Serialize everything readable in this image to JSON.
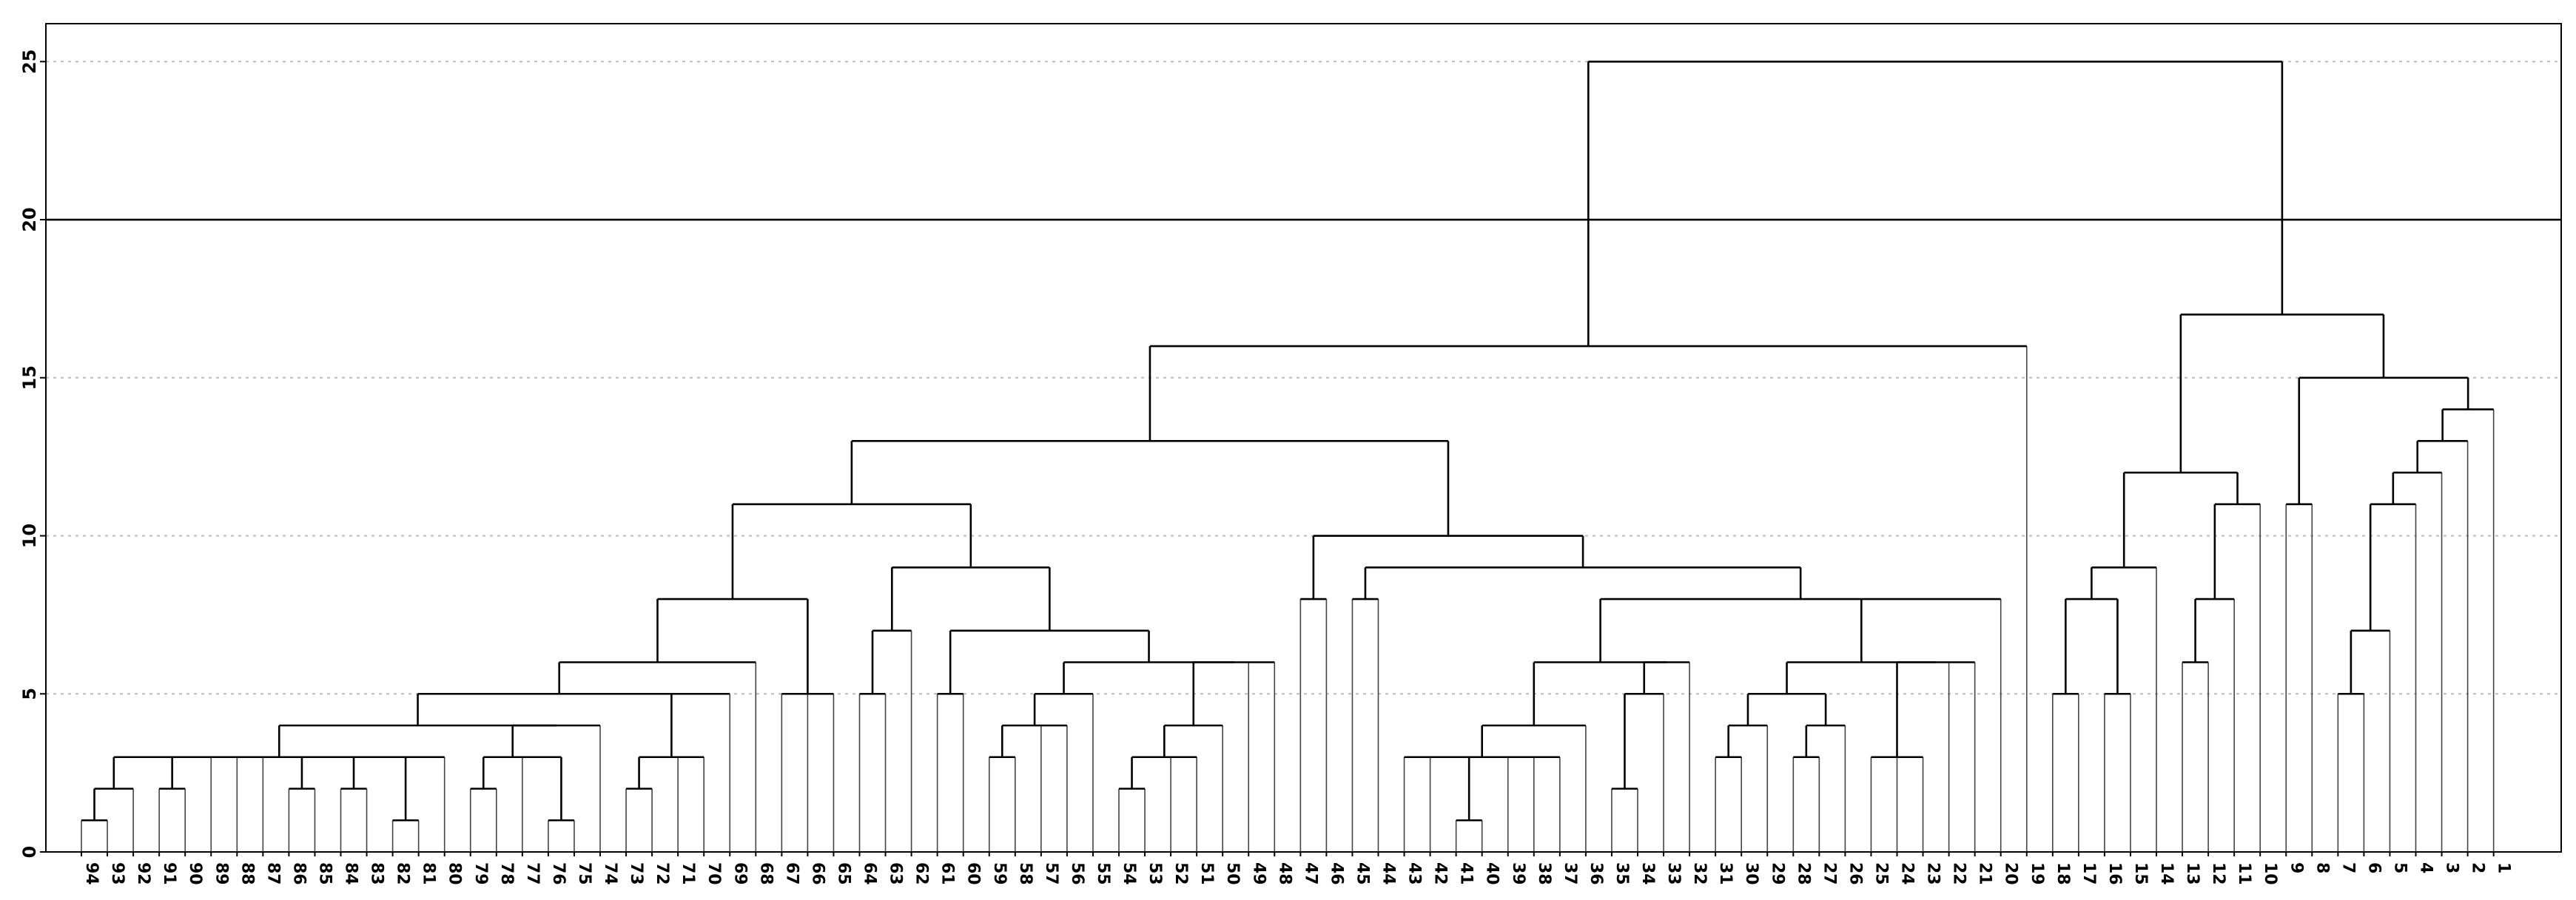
{
  "chart_data": {
    "type": "dendrogram",
    "ylim": [
      0,
      26.2
    ],
    "yticks": [
      0,
      5,
      10,
      15,
      20,
      25
    ],
    "grid": "horizontal-dotted",
    "cut_line": 20,
    "leaves": [
      "94",
      "93",
      "92",
      "91",
      "90",
      "89",
      "88",
      "87",
      "86",
      "85",
      "84",
      "83",
      "82",
      "81",
      "80",
      "79",
      "78",
      "77",
      "76",
      "75",
      "74",
      "73",
      "72",
      "71",
      "70",
      "69",
      "68",
      "67",
      "66",
      "65",
      "64",
      "63",
      "62",
      "61",
      "60",
      "59",
      "58",
      "57",
      "56",
      "55",
      "54",
      "53",
      "52",
      "51",
      "50",
      "49",
      "48",
      "47",
      "46",
      "45",
      "44",
      "43",
      "42",
      "41",
      "40",
      "39",
      "38",
      "37",
      "36",
      "35",
      "34",
      "33",
      "32",
      "31",
      "30",
      "29",
      "28",
      "27",
      "26",
      "25",
      "24",
      "23",
      "22",
      "21",
      "20",
      "19",
      "18",
      "17",
      "16",
      "15",
      "14",
      "13",
      "12",
      "11",
      "10",
      "9",
      "8",
      "7",
      "6",
      "5",
      "4",
      "3",
      "2",
      "1"
    ],
    "merges": [
      {
        "id": "m1",
        "children": [
          "94",
          "93"
        ],
        "height": 1
      },
      {
        "id": "m2",
        "children": [
          "m1",
          "92"
        ],
        "height": 2
      },
      {
        "id": "m3",
        "children": [
          "91",
          "90"
        ],
        "height": 2
      },
      {
        "id": "m4",
        "children": [
          "86",
          "85"
        ],
        "height": 2
      },
      {
        "id": "m5",
        "children": [
          "84",
          "83"
        ],
        "height": 2
      },
      {
        "id": "m6",
        "children": [
          "82",
          "81"
        ],
        "height": 1
      },
      {
        "id": "m7",
        "children": [
          "m2",
          "m3",
          "89",
          "88",
          "87",
          "m4",
          "m5",
          "m6",
          "80"
        ],
        "height": 3
      },
      {
        "id": "m8",
        "children": [
          "79",
          "78"
        ],
        "height": 2
      },
      {
        "id": "m9",
        "children": [
          "76",
          "75"
        ],
        "height": 1
      },
      {
        "id": "m10",
        "children": [
          "77",
          "m9"
        ],
        "height": 3
      },
      {
        "id": "m11",
        "children": [
          "m8",
          "m10"
        ],
        "height": 3
      },
      {
        "id": "m12",
        "children": [
          "m11",
          "74"
        ],
        "height": 4
      },
      {
        "id": "m13",
        "children": [
          "m7",
          "m12"
        ],
        "height": 4
      },
      {
        "id": "m14",
        "children": [
          "73",
          "72"
        ],
        "height": 2
      },
      {
        "id": "m15",
        "children": [
          "m14",
          "71",
          "70"
        ],
        "height": 3
      },
      {
        "id": "m16",
        "children": [
          "m15",
          "69"
        ],
        "height": 5
      },
      {
        "id": "m17",
        "children": [
          "m13",
          "m16"
        ],
        "height": 5
      },
      {
        "id": "m18",
        "children": [
          "m17",
          "68"
        ],
        "height": 6
      },
      {
        "id": "m19",
        "children": [
          "67",
          "66",
          "65"
        ],
        "height": 5
      },
      {
        "id": "m20",
        "children": [
          "m18",
          "m19"
        ],
        "height": 8
      },
      {
        "id": "m21",
        "children": [
          "64",
          "63"
        ],
        "height": 5
      },
      {
        "id": "m22",
        "children": [
          "m21",
          "62"
        ],
        "height": 7
      },
      {
        "id": "m23",
        "children": [
          "61",
          "60"
        ],
        "height": 5
      },
      {
        "id": "m24",
        "children": [
          "59",
          "58"
        ],
        "height": 3
      },
      {
        "id": "m25",
        "children": [
          "m24",
          "57",
          "56"
        ],
        "height": 4
      },
      {
        "id": "m26",
        "children": [
          "m25",
          "55"
        ],
        "height": 5
      },
      {
        "id": "m27",
        "children": [
          "54",
          "53"
        ],
        "height": 2
      },
      {
        "id": "m28",
        "children": [
          "m27",
          "52",
          "51"
        ],
        "height": 3
      },
      {
        "id": "m29",
        "children": [
          "m28",
          "50"
        ],
        "height": 4
      },
      {
        "id": "m30",
        "children": [
          "m29",
          "49",
          "48"
        ],
        "height": 6
      },
      {
        "id": "m31",
        "children": [
          "m26",
          "m30"
        ],
        "height": 6
      },
      {
        "id": "m32",
        "children": [
          "m23",
          "m31"
        ],
        "height": 7
      },
      {
        "id": "m33",
        "children": [
          "m22",
          "m32"
        ],
        "height": 9
      },
      {
        "id": "m34",
        "children": [
          "m20",
          "m33"
        ],
        "height": 11
      },
      {
        "id": "m35",
        "children": [
          "47",
          "46"
        ],
        "height": 8
      },
      {
        "id": "m36",
        "children": [
          "45",
          "44"
        ],
        "height": 8
      },
      {
        "id": "m37",
        "children": [
          "41",
          "40"
        ],
        "height": 1
      },
      {
        "id": "m38",
        "children": [
          "43",
          "42",
          "m37",
          "39",
          "38",
          "37"
        ],
        "height": 3
      },
      {
        "id": "m39",
        "children": [
          "m38",
          "36"
        ],
        "height": 4
      },
      {
        "id": "m40",
        "children": [
          "35",
          "34"
        ],
        "height": 2
      },
      {
        "id": "m41",
        "children": [
          "m40",
          "33"
        ],
        "height": 5
      },
      {
        "id": "m42",
        "children": [
          "m41",
          "32"
        ],
        "height": 6
      },
      {
        "id": "m43",
        "children": [
          "m39",
          "m42"
        ],
        "height": 6
      },
      {
        "id": "m44",
        "children": [
          "31",
          "30"
        ],
        "height": 3
      },
      {
        "id": "m45",
        "children": [
          "m44",
          "29"
        ],
        "height": 4
      },
      {
        "id": "m46",
        "children": [
          "28",
          "27"
        ],
        "height": 3
      },
      {
        "id": "m47",
        "children": [
          "m46",
          "26"
        ],
        "height": 4
      },
      {
        "id": "m48",
        "children": [
          "m45",
          "m47"
        ],
        "height": 5
      },
      {
        "id": "m49",
        "children": [
          "25",
          "24",
          "23"
        ],
        "height": 3
      },
      {
        "id": "m50",
        "children": [
          "m49",
          "22",
          "21"
        ],
        "height": 6
      },
      {
        "id": "m51",
        "children": [
          "m48",
          "m50"
        ],
        "height": 6
      },
      {
        "id": "m52",
        "children": [
          "m43",
          "m51",
          "20"
        ],
        "height": 8
      },
      {
        "id": "m53",
        "children": [
          "m36",
          "m52"
        ],
        "height": 9
      },
      {
        "id": "m54",
        "children": [
          "m35",
          "m53"
        ],
        "height": 10
      },
      {
        "id": "m55",
        "children": [
          "m34",
          "m54"
        ],
        "height": 13
      },
      {
        "id": "m56",
        "children": [
          "m55",
          "19"
        ],
        "height": 16
      },
      {
        "id": "m57",
        "children": [
          "18",
          "17"
        ],
        "height": 5
      },
      {
        "id": "m58",
        "children": [
          "16",
          "15"
        ],
        "height": 5
      },
      {
        "id": "m59",
        "children": [
          "m57",
          "m58"
        ],
        "height": 8
      },
      {
        "id": "m60",
        "children": [
          "m59",
          "14"
        ],
        "height": 9
      },
      {
        "id": "m61",
        "children": [
          "13",
          "12"
        ],
        "height": 6
      },
      {
        "id": "m62",
        "children": [
          "m61",
          "11"
        ],
        "height": 8
      },
      {
        "id": "m63",
        "children": [
          "m62",
          "10"
        ],
        "height": 11
      },
      {
        "id": "m64",
        "children": [
          "m60",
          "m63"
        ],
        "height": 12
      },
      {
        "id": "m65",
        "children": [
          "9",
          "8"
        ],
        "height": 11
      },
      {
        "id": "m66",
        "children": [
          "7",
          "6"
        ],
        "height": 5
      },
      {
        "id": "m67",
        "children": [
          "m66",
          "5"
        ],
        "height": 7
      },
      {
        "id": "m68",
        "children": [
          "m67",
          "4"
        ],
        "height": 11
      },
      {
        "id": "m69",
        "children": [
          "m68",
          "3"
        ],
        "height": 12
      },
      {
        "id": "m70",
        "children": [
          "m69",
          "2"
        ],
        "height": 13
      },
      {
        "id": "m71",
        "children": [
          "m70",
          "1"
        ],
        "height": 14
      },
      {
        "id": "m72",
        "children": [
          "m65",
          "m71"
        ],
        "height": 15
      },
      {
        "id": "m73",
        "children": [
          "m64",
          "m72"
        ],
        "height": 17
      },
      {
        "id": "m74",
        "children": [
          "m56",
          "m73"
        ],
        "height": 25
      }
    ]
  }
}
